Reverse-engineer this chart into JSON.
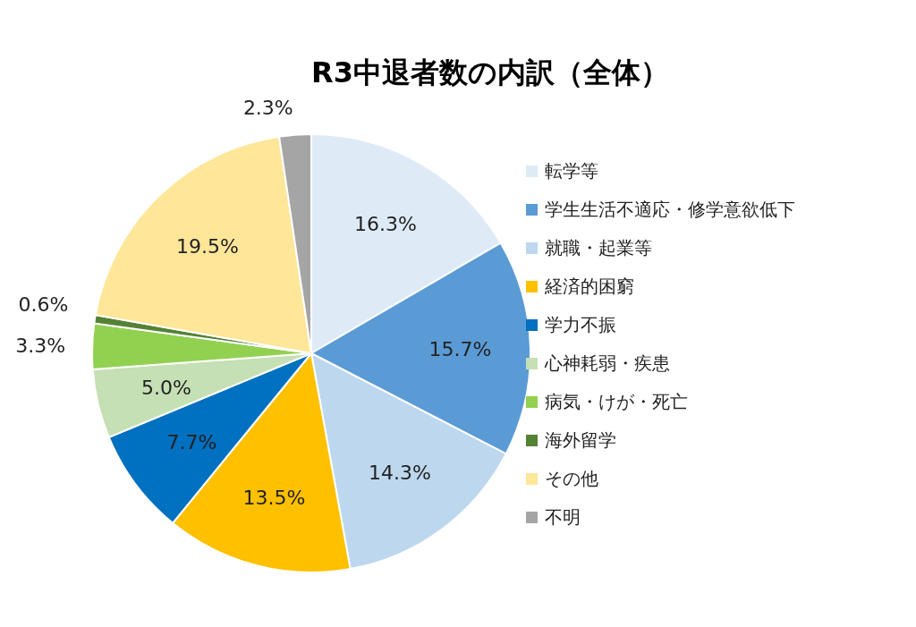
{
  "chart_data": {
    "type": "pie",
    "title": "R3中退者数の内訳（全体）",
    "categories": [
      "転学等",
      "学生生活不適応・修学意欲低下",
      "就職・起業等",
      "経済的困窮",
      "学力不振",
      "心神耗弱・疾患",
      "病気・けが・死亡",
      "海外留学",
      "その他",
      "不明"
    ],
    "values": [
      16.3,
      15.7,
      14.3,
      13.5,
      7.7,
      5.0,
      3.3,
      0.6,
      19.5,
      2.3
    ],
    "value_labels": [
      "16.3%",
      "15.7%",
      "14.3%",
      "13.5%",
      "7.7%",
      "5.0%",
      "3.3%",
      "0.6%",
      "19.5%",
      "2.3%"
    ],
    "colors": [
      "#deebf7",
      "#5b9bd5",
      "#bdd7ee",
      "#ffc000",
      "#0070c0",
      "#c5e0b4",
      "#92d050",
      "#548235",
      "#ffe699",
      "#a5a5a5"
    ],
    "legend": "right"
  }
}
